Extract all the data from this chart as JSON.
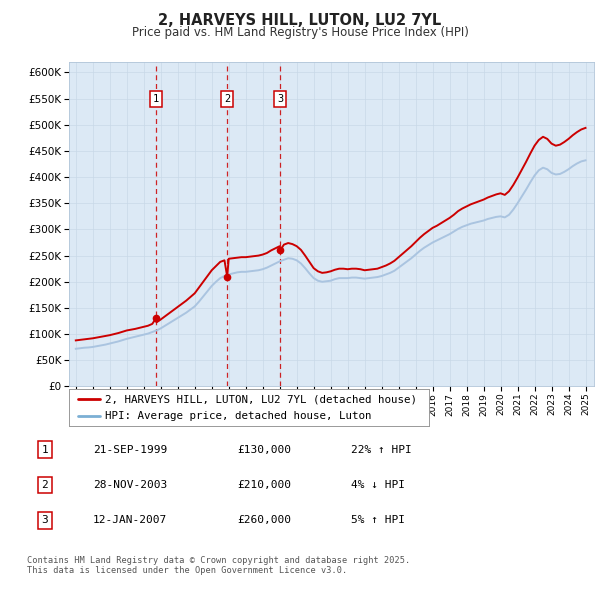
{
  "title": "2, HARVEYS HILL, LUTON, LU2 7YL",
  "subtitle": "Price paid vs. HM Land Registry's House Price Index (HPI)",
  "bg_color": "#dce9f5",
  "ylim": [
    0,
    620000
  ],
  "yticks": [
    0,
    50000,
    100000,
    150000,
    200000,
    250000,
    300000,
    350000,
    400000,
    450000,
    500000,
    550000,
    600000
  ],
  "sale_dates": [
    1999.72,
    2003.91,
    2007.03
  ],
  "sale_prices": [
    130000,
    210000,
    260000
  ],
  "sale_labels": [
    "1",
    "2",
    "3"
  ],
  "legend_property": "2, HARVEYS HILL, LUTON, LU2 7YL (detached house)",
  "legend_hpi": "HPI: Average price, detached house, Luton",
  "table_rows": [
    [
      "1",
      "21-SEP-1999",
      "£130,000",
      "22% ↑ HPI"
    ],
    [
      "2",
      "28-NOV-2003",
      "£210,000",
      "4% ↓ HPI"
    ],
    [
      "3",
      "12-JAN-2007",
      "£260,000",
      "5% ↑ HPI"
    ]
  ],
  "footer": "Contains HM Land Registry data © Crown copyright and database right 2025.\nThis data is licensed under the Open Government Licence v3.0.",
  "hpi_years": [
    1995.0,
    1995.25,
    1995.5,
    1995.75,
    1996.0,
    1996.25,
    1996.5,
    1996.75,
    1997.0,
    1997.25,
    1997.5,
    1997.75,
    1998.0,
    1998.25,
    1998.5,
    1998.75,
    1999.0,
    1999.25,
    1999.5,
    1999.75,
    2000.0,
    2000.25,
    2000.5,
    2000.75,
    2001.0,
    2001.25,
    2001.5,
    2001.75,
    2002.0,
    2002.25,
    2002.5,
    2002.75,
    2003.0,
    2003.25,
    2003.5,
    2003.75,
    2004.0,
    2004.25,
    2004.5,
    2004.75,
    2005.0,
    2005.25,
    2005.5,
    2005.75,
    2006.0,
    2006.25,
    2006.5,
    2006.75,
    2007.0,
    2007.25,
    2007.5,
    2007.75,
    2008.0,
    2008.25,
    2008.5,
    2008.75,
    2009.0,
    2009.25,
    2009.5,
    2009.75,
    2010.0,
    2010.25,
    2010.5,
    2010.75,
    2011.0,
    2011.25,
    2011.5,
    2011.75,
    2012.0,
    2012.25,
    2012.5,
    2012.75,
    2013.0,
    2013.25,
    2013.5,
    2013.75,
    2014.0,
    2014.25,
    2014.5,
    2014.75,
    2015.0,
    2015.25,
    2015.5,
    2015.75,
    2016.0,
    2016.25,
    2016.5,
    2016.75,
    2017.0,
    2017.25,
    2017.5,
    2017.75,
    2018.0,
    2018.25,
    2018.5,
    2018.75,
    2019.0,
    2019.25,
    2019.5,
    2019.75,
    2020.0,
    2020.25,
    2020.5,
    2020.75,
    2021.0,
    2021.25,
    2021.5,
    2021.75,
    2022.0,
    2022.25,
    2022.5,
    2022.75,
    2023.0,
    2023.25,
    2023.5,
    2023.75,
    2024.0,
    2024.25,
    2024.5,
    2024.75,
    2025.0
  ],
  "hpi_values": [
    72000,
    73000,
    74000,
    74500,
    75500,
    77000,
    78500,
    80000,
    82000,
    84000,
    86000,
    88500,
    91000,
    93000,
    95000,
    97000,
    99000,
    101000,
    104000,
    107000,
    111000,
    116000,
    121000,
    126000,
    131000,
    136000,
    141000,
    147000,
    153000,
    162000,
    172000,
    182000,
    192000,
    200000,
    207000,
    211000,
    214000,
    216000,
    218000,
    219000,
    219000,
    220000,
    221000,
    222000,
    224000,
    227000,
    231000,
    235000,
    239000,
    242000,
    245000,
    244000,
    241000,
    235000,
    226000,
    216000,
    207000,
    202000,
    200000,
    201000,
    202000,
    205000,
    207000,
    207000,
    207000,
    208000,
    208000,
    207000,
    206000,
    207000,
    208000,
    209000,
    211000,
    214000,
    217000,
    221000,
    227000,
    233000,
    239000,
    245000,
    252000,
    259000,
    265000,
    270000,
    275000,
    279000,
    283000,
    287000,
    291000,
    296000,
    301000,
    305000,
    308000,
    311000,
    313000,
    315000,
    317000,
    320000,
    322000,
    324000,
    325000,
    323000,
    328000,
    338000,
    350000,
    363000,
    376000,
    390000,
    403000,
    413000,
    418000,
    415000,
    408000,
    405000,
    406000,
    410000,
    415000,
    421000,
    426000,
    430000,
    432000
  ],
  "property_years": [
    1995.0,
    1995.25,
    1995.5,
    1995.75,
    1996.0,
    1996.25,
    1996.5,
    1996.75,
    1997.0,
    1997.25,
    1997.5,
    1997.75,
    1998.0,
    1998.25,
    1998.5,
    1998.75,
    1999.0,
    1999.25,
    1999.5,
    1999.72,
    1999.75,
    2000.0,
    2000.25,
    2000.5,
    2000.75,
    2001.0,
    2001.25,
    2001.5,
    2001.75,
    2002.0,
    2002.25,
    2002.5,
    2002.75,
    2003.0,
    2003.25,
    2003.5,
    2003.75,
    2003.91,
    2004.0,
    2004.25,
    2004.5,
    2004.75,
    2005.0,
    2005.25,
    2005.5,
    2005.75,
    2006.0,
    2006.25,
    2006.5,
    2006.75,
    2007.0,
    2007.03,
    2007.25,
    2007.5,
    2007.75,
    2008.0,
    2008.25,
    2008.5,
    2008.75,
    2009.0,
    2009.25,
    2009.5,
    2009.75,
    2010.0,
    2010.25,
    2010.5,
    2010.75,
    2011.0,
    2011.25,
    2011.5,
    2011.75,
    2012.0,
    2012.25,
    2012.5,
    2012.75,
    2013.0,
    2013.25,
    2013.5,
    2013.75,
    2014.0,
    2014.25,
    2014.5,
    2014.75,
    2015.0,
    2015.25,
    2015.5,
    2015.75,
    2016.0,
    2016.25,
    2016.5,
    2016.75,
    2017.0,
    2017.25,
    2017.5,
    2017.75,
    2018.0,
    2018.25,
    2018.5,
    2018.75,
    2019.0,
    2019.25,
    2019.5,
    2019.75,
    2020.0,
    2020.25,
    2020.5,
    2020.75,
    2021.0,
    2021.25,
    2021.5,
    2021.75,
    2022.0,
    2022.25,
    2022.5,
    2022.75,
    2023.0,
    2023.25,
    2023.5,
    2023.75,
    2024.0,
    2024.25,
    2024.5,
    2024.75,
    2025.0
  ],
  "property_values": [
    88000,
    89000,
    90000,
    91000,
    92000,
    93500,
    95000,
    96500,
    98000,
    100000,
    102000,
    104500,
    107000,
    108500,
    110000,
    112000,
    114000,
    116000,
    119500,
    130000,
    122500,
    128000,
    134000,
    140000,
    146000,
    152000,
    158000,
    164000,
    171000,
    178000,
    189000,
    200000,
    211000,
    222000,
    230000,
    238000,
    241000,
    210000,
    244000,
    245000,
    246000,
    247000,
    247000,
    248000,
    249000,
    250000,
    252000,
    255000,
    260000,
    264000,
    268000,
    260000,
    271000,
    274000,
    272000,
    268000,
    261000,
    250000,
    238000,
    226000,
    220000,
    217000,
    218000,
    220000,
    223000,
    225000,
    225000,
    224000,
    225000,
    225000,
    224000,
    222000,
    223000,
    224000,
    225000,
    228000,
    231000,
    235000,
    240000,
    247000,
    254000,
    261000,
    268000,
    276000,
    284000,
    291000,
    297000,
    303000,
    307000,
    312000,
    317000,
    322000,
    328000,
    335000,
    340000,
    344000,
    348000,
    351000,
    354000,
    357000,
    361000,
    364000,
    367000,
    369000,
    366000,
    373000,
    385000,
    399000,
    414000,
    429000,
    445000,
    460000,
    471000,
    477000,
    473000,
    464000,
    460000,
    462000,
    467000,
    473000,
    480000,
    486000,
    491000,
    494000
  ]
}
